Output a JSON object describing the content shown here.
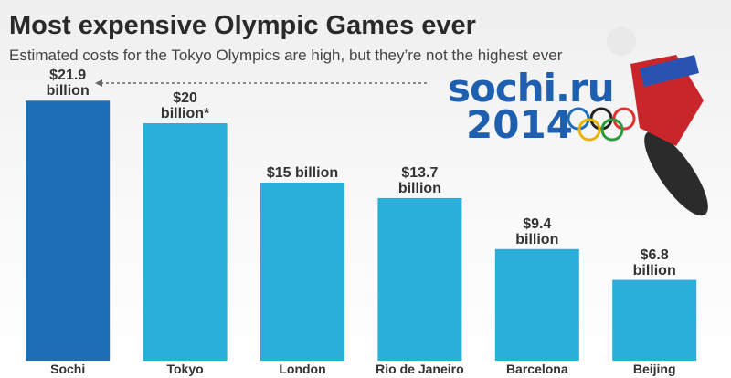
{
  "chart_data": {
    "type": "bar",
    "title": "Most expensive Olympic Games ever",
    "subtitle": "Estimated costs for the Tokyo Olympics are high, but they’re not the highest ever",
    "categories": [
      "Sochi",
      "Tokyo",
      "London",
      "Rio de Janeiro",
      "Barcelona",
      "Beijing"
    ],
    "values": [
      21.9,
      20,
      15,
      13.7,
      9.4,
      6.8
    ],
    "value_labels": [
      "$21.9 billion",
      "$20 billion*",
      "$15 billion",
      "$13.7 billion",
      "$9.4 billion",
      "$6.8 billion"
    ],
    "colors": [
      "#1c6fb5",
      "#29afd8",
      "#29afd8",
      "#29afd8",
      "#29afd8",
      "#29afd8"
    ],
    "logo": {
      "name": "sochi.ru",
      "year": "2014"
    }
  }
}
